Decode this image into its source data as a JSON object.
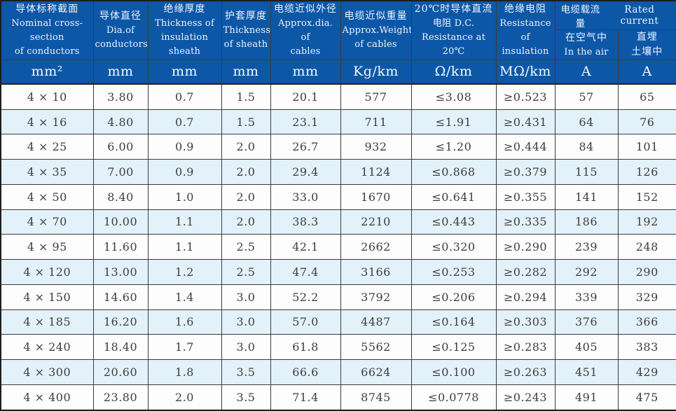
{
  "table": {
    "title": "Cable specification table",
    "colors": {
      "header_blue": "#0d57a7",
      "header_text": "#eef4fc",
      "stripe_blue": "#e3f1fb",
      "grid_line": "#3b3b3b",
      "data_text": "#3d3d3d"
    },
    "rated_current_header": {
      "zh": "电缆载流量",
      "en": "Rated current"
    },
    "columns": [
      {
        "zh": "导体标称截面",
        "en1": "Nominal cross-section",
        "en2": "of conductors",
        "unit": "mm²"
      },
      {
        "zh": "导体直径",
        "en1": "Dia.of",
        "en2": "conductors",
        "unit": "mm"
      },
      {
        "zh": "绝缘厚度",
        "en1": "Thickness of",
        "en2": "insulation sheath",
        "unit": "mm"
      },
      {
        "zh": "护套厚度",
        "en1": "Thickness",
        "en2": "of sheath",
        "unit": "mm"
      },
      {
        "zh": "电缆近似外径",
        "en1": "Approx.dia. of",
        "en2": "cables",
        "unit": "mm"
      },
      {
        "zh": "电缆近似重量",
        "en1": "Approx.Weight",
        "en2": "of cables",
        "unit": "Kg/km"
      },
      {
        "zh": "20℃时导体直流",
        "en1": "电阻 D.C.",
        "en2": "Resistance at 20℃",
        "unit": "Ω/km"
      },
      {
        "zh": "绝缘电阻",
        "en1": "Resistance",
        "en2": "of insulation",
        "unit": "MΩ/km"
      },
      {
        "zh": "在空气中",
        "en1": "In the air",
        "en2": "",
        "unit": "A"
      },
      {
        "zh": "直埋",
        "en1": "土壤中",
        "en2": "",
        "unit": "A"
      }
    ],
    "rows": [
      [
        "4 × 10",
        "3.80",
        "0.7",
        "1.5",
        "20.1",
        "577",
        "≤3.08",
        "≥0.523",
        "57",
        "65"
      ],
      [
        "4 × 16",
        "4.80",
        "0.7",
        "1.5",
        "23.1",
        "711",
        "≤1.91",
        "≥0.431",
        "64",
        "76"
      ],
      [
        "4 × 25",
        "6.00",
        "0.9",
        "2.0",
        "26.7",
        "932",
        "≤1.20",
        "≥0.444",
        "84",
        "101"
      ],
      [
        "4 × 35",
        "7.00",
        "0.9",
        "2.0",
        "29.4",
        "1124",
        "≤0.868",
        "≥0.379",
        "115",
        "126"
      ],
      [
        "4 × 50",
        "8.40",
        "1.0",
        "2.0",
        "33.0",
        "1670",
        "≤0.641",
        "≥0.355",
        "141",
        "152"
      ],
      [
        "4 × 70",
        "10.00",
        "1.1",
        "2.0",
        "38.3",
        "2210",
        "≤0.443",
        "≥0.335",
        "186",
        "192"
      ],
      [
        "4 × 95",
        "11.60",
        "1.1",
        "2.5",
        "42.1",
        "2662",
        "≤0.320",
        "≥0.290",
        "239",
        "248"
      ],
      [
        "4 × 120",
        "13.00",
        "1.2",
        "2.5",
        "47.4",
        "3166",
        "≤0.253",
        "≥0.282",
        "292",
        "290"
      ],
      [
        "4 × 150",
        "14.60",
        "1.4",
        "3.0",
        "52.2",
        "3792",
        "≤0.206",
        "≥0.294",
        "339",
        "329"
      ],
      [
        "4 × 185",
        "16.20",
        "1.6",
        "3.0",
        "57.0",
        "4487",
        "≤0.164",
        "≥0.303",
        "376",
        "366"
      ],
      [
        "4 × 240",
        "18.40",
        "1.7",
        "3.0",
        "61.8",
        "5562",
        "≤0.125",
        "≥0.283",
        "405",
        "383"
      ],
      [
        "4 × 300",
        "20.60",
        "1.8",
        "3.5",
        "66.6",
        "6624",
        "≤0.100",
        "≥0.263",
        "451",
        "429"
      ],
      [
        "4 × 400",
        "23.80",
        "2.0",
        "3.5",
        "71.4",
        "8745",
        "≤0.0778",
        "≥0.243",
        "491",
        "475"
      ]
    ]
  }
}
